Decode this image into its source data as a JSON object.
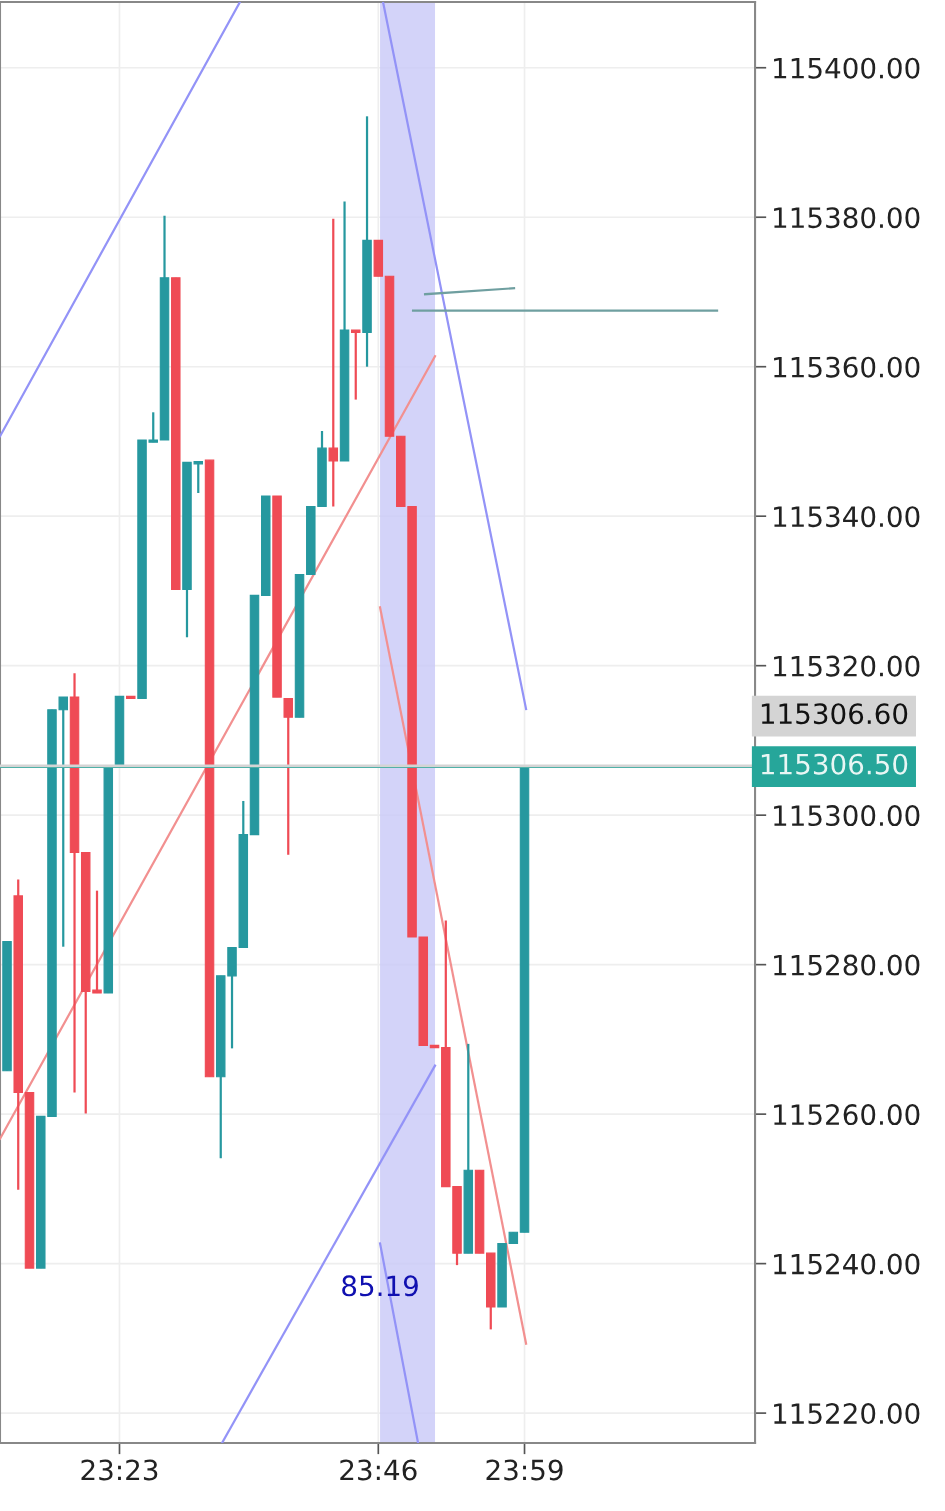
{
  "chart_data": {
    "type": "candlestick",
    "x": [
      23.2167,
      23.2333,
      23.25,
      23.2667,
      23.2833,
      23.3,
      23.3167,
      23.3333,
      23.35,
      23.3667,
      23.3833,
      23.4,
      23.4167,
      23.4333,
      23.45,
      23.4667,
      23.4833,
      23.5,
      23.5167,
      23.5333,
      23.55,
      23.5667,
      23.5833,
      23.6,
      23.6167,
      23.6333,
      23.65,
      23.6667,
      23.6833,
      23.7,
      23.7167,
      23.7333,
      23.75,
      23.7667,
      23.7833,
      23.8,
      23.8167,
      23.8333,
      23.85,
      23.8667,
      23.8833,
      23.9,
      23.9167,
      23.9333,
      23.95,
      23.9667,
      23.9833
    ],
    "ohlc": [
      [
        115265.8,
        115283.1,
        115265.8,
        115283.1
      ],
      [
        115289.2,
        115291.4,
        115249.9,
        115262.9
      ],
      [
        115262.9,
        115262.9,
        115239.4,
        115239.4
      ],
      [
        115239.4,
        115259.7,
        115239.4,
        115259.7
      ],
      [
        115259.7,
        115314.1,
        115259.7,
        115314.1
      ],
      [
        115314.1,
        115315.8,
        115282.4,
        115315.8
      ],
      [
        115315.8,
        115319.0,
        115262.9,
        115295.0
      ],
      [
        115295.0,
        115295.0,
        115260.1,
        115276.4
      ],
      [
        115276.6,
        115289.9,
        115276.2,
        115276.2
      ],
      [
        115276.2,
        115306.6,
        115276.2,
        115306.6
      ],
      [
        115306.6,
        115315.9,
        115306.6,
        115315.9
      ],
      [
        115315.9,
        115315.9,
        115315.6,
        115315.6
      ],
      [
        115315.6,
        115350.2,
        115315.6,
        115350.2
      ],
      [
        115349.9,
        115353.9,
        115349.9,
        115350.2
      ],
      [
        115350.2,
        115380.2,
        115350.2,
        115371.9
      ],
      [
        115371.9,
        115371.9,
        115330.2,
        115330.2
      ],
      [
        115330.2,
        115347.2,
        115323.8,
        115347.2
      ],
      [
        115347.0,
        115347.3,
        115343.1,
        115347.3
      ],
      [
        115347.5,
        115347.5,
        115265.0,
        115265.0
      ],
      [
        115265.0,
        115278.5,
        115254.1,
        115278.5
      ],
      [
        115278.5,
        115282.3,
        115268.8,
        115282.3
      ],
      [
        115282.3,
        115301.9,
        115282.3,
        115297.4
      ],
      [
        115297.4,
        115329.4,
        115297.4,
        115329.4
      ],
      [
        115329.4,
        115342.7,
        115329.4,
        115342.7
      ],
      [
        115342.7,
        115342.7,
        115315.8,
        115315.8
      ],
      [
        115315.6,
        115315.6,
        115294.7,
        115313.1
      ],
      [
        115313.1,
        115332.2,
        115313.1,
        115332.2
      ],
      [
        115332.2,
        115341.3,
        115332.2,
        115341.3
      ],
      [
        115341.3,
        115351.4,
        115341.3,
        115349.1
      ],
      [
        115349.1,
        115379.8,
        115341.3,
        115347.4
      ],
      [
        115347.4,
        115382.1,
        115347.4,
        115364.9
      ],
      [
        115364.9,
        115364.9,
        115355.6,
        115364.6
      ],
      [
        115364.6,
        115393.5,
        115360.0,
        115376.9
      ],
      [
        115376.9,
        115376.9,
        115372.1,
        115372.1
      ],
      [
        115372.1,
        115372.1,
        115350.7,
        115350.7
      ],
      [
        115350.7,
        115350.7,
        115341.3,
        115341.3
      ],
      [
        115341.3,
        115341.3,
        115283.7,
        115283.7
      ],
      [
        115283.7,
        115283.7,
        115269.2,
        115269.2
      ],
      [
        115269.2,
        115269.2,
        115268.9,
        115268.9
      ],
      [
        115268.9,
        115285.9,
        115250.3,
        115250.3
      ],
      [
        115250.3,
        115250.3,
        115239.8,
        115241.4
      ],
      [
        115241.4,
        115269.4,
        115241.4,
        115252.5
      ],
      [
        115252.5,
        115252.5,
        115241.4,
        115241.4
      ],
      [
        115241.4,
        115241.4,
        115231.2,
        115234.2
      ],
      [
        115234.2,
        115242.7,
        115234.2,
        115242.7
      ],
      [
        115242.7,
        115244.2,
        115242.7,
        115244.2
      ],
      [
        115244.2,
        115306.5,
        115244.2,
        115306.5
      ]
    ],
    "colors": [
      "#26989f",
      "#ef4b55",
      "#ef4b55",
      "#26989f",
      "#26989f",
      "#26989f",
      "#ef4b55",
      "#ef4b55",
      "#ef4b55",
      "#26989f",
      "#26989f",
      "#ef4b55",
      "#26989f",
      "#26989f",
      "#26989f",
      "#ef4b55",
      "#26989f",
      "#26989f",
      "#ef4b55",
      "#26989f",
      "#26989f",
      "#26989f",
      "#26989f",
      "#26989f",
      "#ef4b55",
      "#ef4b55",
      "#26989f",
      "#26989f",
      "#26989f",
      "#ef4b55",
      "#26989f",
      "#ef4b55",
      "#26989f",
      "#ef4b55",
      "#ef4b55",
      "#ef4b55",
      "#ef4b55",
      "#ef4b55",
      "#ef4b55",
      "#ef4b55",
      "#ef4b55",
      "#26989f",
      "#ef4b55",
      "#ef4b55",
      "#26989f",
      "#26989f",
      "#26989f"
    ],
    "series": [
      {
        "type": "line",
        "color": "#9393f7",
        "x": [
          23.2063,
          23.5618
        ],
        "values": [
          115350.7,
          115408.8
        ]
      },
      {
        "type": "line",
        "color": "#9393f7",
        "x": [
          23.7737,
          23.9856
        ],
        "values": [
          115408.8,
          115314.2
        ]
      },
      {
        "type": "line",
        "color": "#9393f7",
        "x": [
          23.5352,
          23.8507
        ],
        "values": [
          115216.0,
          115266.5
        ]
      },
      {
        "type": "line",
        "color": "#9393f7",
        "x": [
          23.7693,
          23.8256
        ],
        "values": [
          115242.7,
          115216.0
        ]
      },
      {
        "type": "line",
        "color": "#f29090",
        "x": [
          23.2063,
          23.8507
        ],
        "values": [
          115256.7,
          115361.4
        ]
      },
      {
        "type": "line",
        "color": "#f29090",
        "x": [
          23.7693,
          23.9856
        ],
        "values": [
          115327.8,
          115229.3
        ]
      },
      {
        "type": "line",
        "color": "#6f9fa0",
        "x": [
          23.836,
          23.9678
        ],
        "values": [
          115369.7,
          115370.5
        ]
      },
      {
        "type": "line",
        "color": "#6f9fa0",
        "x": [
          23.8182,
          24.2685
        ],
        "values": [
          115367.5,
          115367.5
        ]
      }
    ],
    "bands": [
      {
        "axis": "x",
        "from": 23.7693,
        "to": 23.8507,
        "color": "#c8c8f8"
      }
    ],
    "ref_lines": [
      {
        "axis": "y",
        "value": 115306.5,
        "label": "115306.50",
        "color": "#26a69a"
      },
      {
        "axis": "y",
        "value": 115306.6,
        "label": "115306.60",
        "color": "#d4d4d4"
      }
    ],
    "annotations": [
      {
        "text": "85.19",
        "x": 23.7693,
        "y": 115236.7
      }
    ],
    "xlim": [
      23.2063,
      24.3248
    ],
    "xticks": [
      {
        "value": 23.3833,
        "label": "23:23"
      },
      {
        "value": 23.7667,
        "label": "23:46"
      },
      {
        "value": 23.9833,
        "label": "23:59"
      }
    ],
    "ylim": [
      115216.0,
      115408.8
    ],
    "yticks": [
      {
        "value": 115220,
        "label": "115220.00"
      },
      {
        "value": 115240,
        "label": "115240.00"
      },
      {
        "value": 115260,
        "label": "115260.00"
      },
      {
        "value": 115280,
        "label": "115280.00"
      },
      {
        "value": 115300,
        "label": "115300.00"
      },
      {
        "value": 115320,
        "label": "115320.00"
      },
      {
        "value": 115340,
        "label": "115340.00"
      },
      {
        "value": 115360,
        "label": "115360.00"
      },
      {
        "value": 115380,
        "label": "115380.00"
      },
      {
        "value": 115400,
        "label": "115400.00"
      }
    ],
    "grid": true
  }
}
